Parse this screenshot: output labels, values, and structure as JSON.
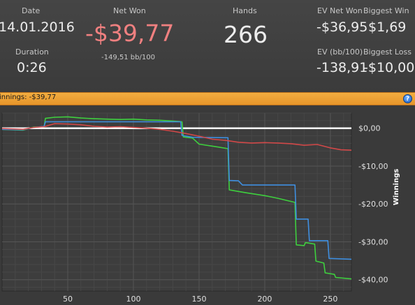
{
  "stats": {
    "date": {
      "label": "Date",
      "value": "14.01.2016"
    },
    "duration": {
      "label": "Duration",
      "value": "0:26"
    },
    "net_won": {
      "label": "Net Won",
      "value": "-$39,77",
      "sub": "-149,51 bb/100"
    },
    "hands": {
      "label": "Hands",
      "value": "266"
    },
    "ev_net_won": {
      "label": "EV Net Won",
      "value": "-$36,95"
    },
    "biggest_win": {
      "label": "Biggest Win",
      "value": "$1,69"
    },
    "ev_bb100": {
      "label": "EV (bb/100)",
      "value": "-138,91"
    },
    "biggest_loss": {
      "label": "Biggest Loss",
      "value": "-$10,00"
    }
  },
  "banner": {
    "text": "innings: -$39,77",
    "help_icon": "?"
  },
  "colors": {
    "net_won": "#f08080",
    "green_series": "#3ecf3e",
    "blue_series": "#3f8fe0",
    "red_series": "#d14848",
    "zero_line": "#ffffff"
  },
  "chart_data": {
    "type": "line",
    "title": "",
    "xlabel": "",
    "ylabel": "Winnings",
    "xlim": [
      0,
      266
    ],
    "ylim": [
      -43,
      4
    ],
    "x_ticks": [
      50,
      100,
      150,
      200,
      250
    ],
    "y_ticks": [
      0,
      -10,
      -20,
      -30,
      -40
    ],
    "y_tick_labels": [
      "$0,00",
      "-$10,00",
      "-$20,00",
      "-$30,00",
      "-$40,00"
    ],
    "grid": true,
    "series": [
      {
        "color": "#3ecf3e",
        "points": [
          [
            0,
            -0.3
          ],
          [
            16,
            -0.5
          ],
          [
            24,
            0.3
          ],
          [
            32,
            0.4
          ],
          [
            33,
            2.6
          ],
          [
            40,
            2.9
          ],
          [
            50,
            3.0
          ],
          [
            60,
            2.7
          ],
          [
            70,
            2.5
          ],
          [
            80,
            2.4
          ],
          [
            90,
            2.3
          ],
          [
            100,
            2.4
          ],
          [
            110,
            2.2
          ],
          [
            120,
            2.1
          ],
          [
            130,
            1.9
          ],
          [
            137,
            1.7
          ],
          [
            138,
            -2.3
          ],
          [
            145,
            -2.6
          ],
          [
            150,
            -4.2
          ],
          [
            165,
            -5.0
          ],
          [
            172,
            -5.4
          ],
          [
            173,
            -16.3
          ],
          [
            185,
            -17.0
          ],
          [
            200,
            -17.8
          ],
          [
            210,
            -18.5
          ],
          [
            223,
            -19.6
          ],
          [
            224,
            -30.8
          ],
          [
            230,
            -31.0
          ],
          [
            231,
            -30.2
          ],
          [
            238,
            -30.6
          ],
          [
            239,
            -35.1
          ],
          [
            245,
            -35.6
          ],
          [
            246,
            -38.2
          ],
          [
            253,
            -38.6
          ],
          [
            254,
            -39.4
          ],
          [
            266,
            -39.8
          ]
        ]
      },
      {
        "color": "#3f8fe0",
        "points": [
          [
            0,
            -0.3
          ],
          [
            16,
            -0.4
          ],
          [
            24,
            0.2
          ],
          [
            32,
            0.5
          ],
          [
            33,
            1.7
          ],
          [
            60,
            1.7
          ],
          [
            100,
            1.7
          ],
          [
            136,
            1.7
          ],
          [
            137,
            -1.9
          ],
          [
            145,
            -2.4
          ],
          [
            170,
            -2.5
          ],
          [
            172,
            -2.5
          ],
          [
            173,
            -13.8
          ],
          [
            180,
            -13.9
          ],
          [
            183,
            -15.0
          ],
          [
            210,
            -15.0
          ],
          [
            223,
            -15.0
          ],
          [
            224,
            -24.0
          ],
          [
            233,
            -24.0
          ],
          [
            234,
            -29.7
          ],
          [
            248,
            -29.7
          ],
          [
            249,
            -34.4
          ],
          [
            266,
            -34.6
          ]
        ]
      },
      {
        "color": "#d14848",
        "points": [
          [
            0,
            -0.1
          ],
          [
            16,
            -0.3
          ],
          [
            24,
            0.2
          ],
          [
            32,
            0.4
          ],
          [
            40,
            1.2
          ],
          [
            50,
            1.1
          ],
          [
            60,
            0.9
          ],
          [
            70,
            0.5
          ],
          [
            80,
            0.3
          ],
          [
            90,
            0.4
          ],
          [
            100,
            0.2
          ],
          [
            110,
            0.0
          ],
          [
            120,
            -0.3
          ],
          [
            130,
            -0.8
          ],
          [
            140,
            -1.4
          ],
          [
            150,
            -2.1
          ],
          [
            160,
            -2.9
          ],
          [
            170,
            -3.2
          ],
          [
            180,
            -3.7
          ],
          [
            190,
            -3.9
          ],
          [
            200,
            -3.8
          ],
          [
            210,
            -3.9
          ],
          [
            220,
            -4.1
          ],
          [
            230,
            -4.5
          ],
          [
            240,
            -4.3
          ],
          [
            250,
            -5.2
          ],
          [
            258,
            -5.7
          ],
          [
            266,
            -5.8
          ]
        ]
      }
    ],
    "zero_line": true
  }
}
